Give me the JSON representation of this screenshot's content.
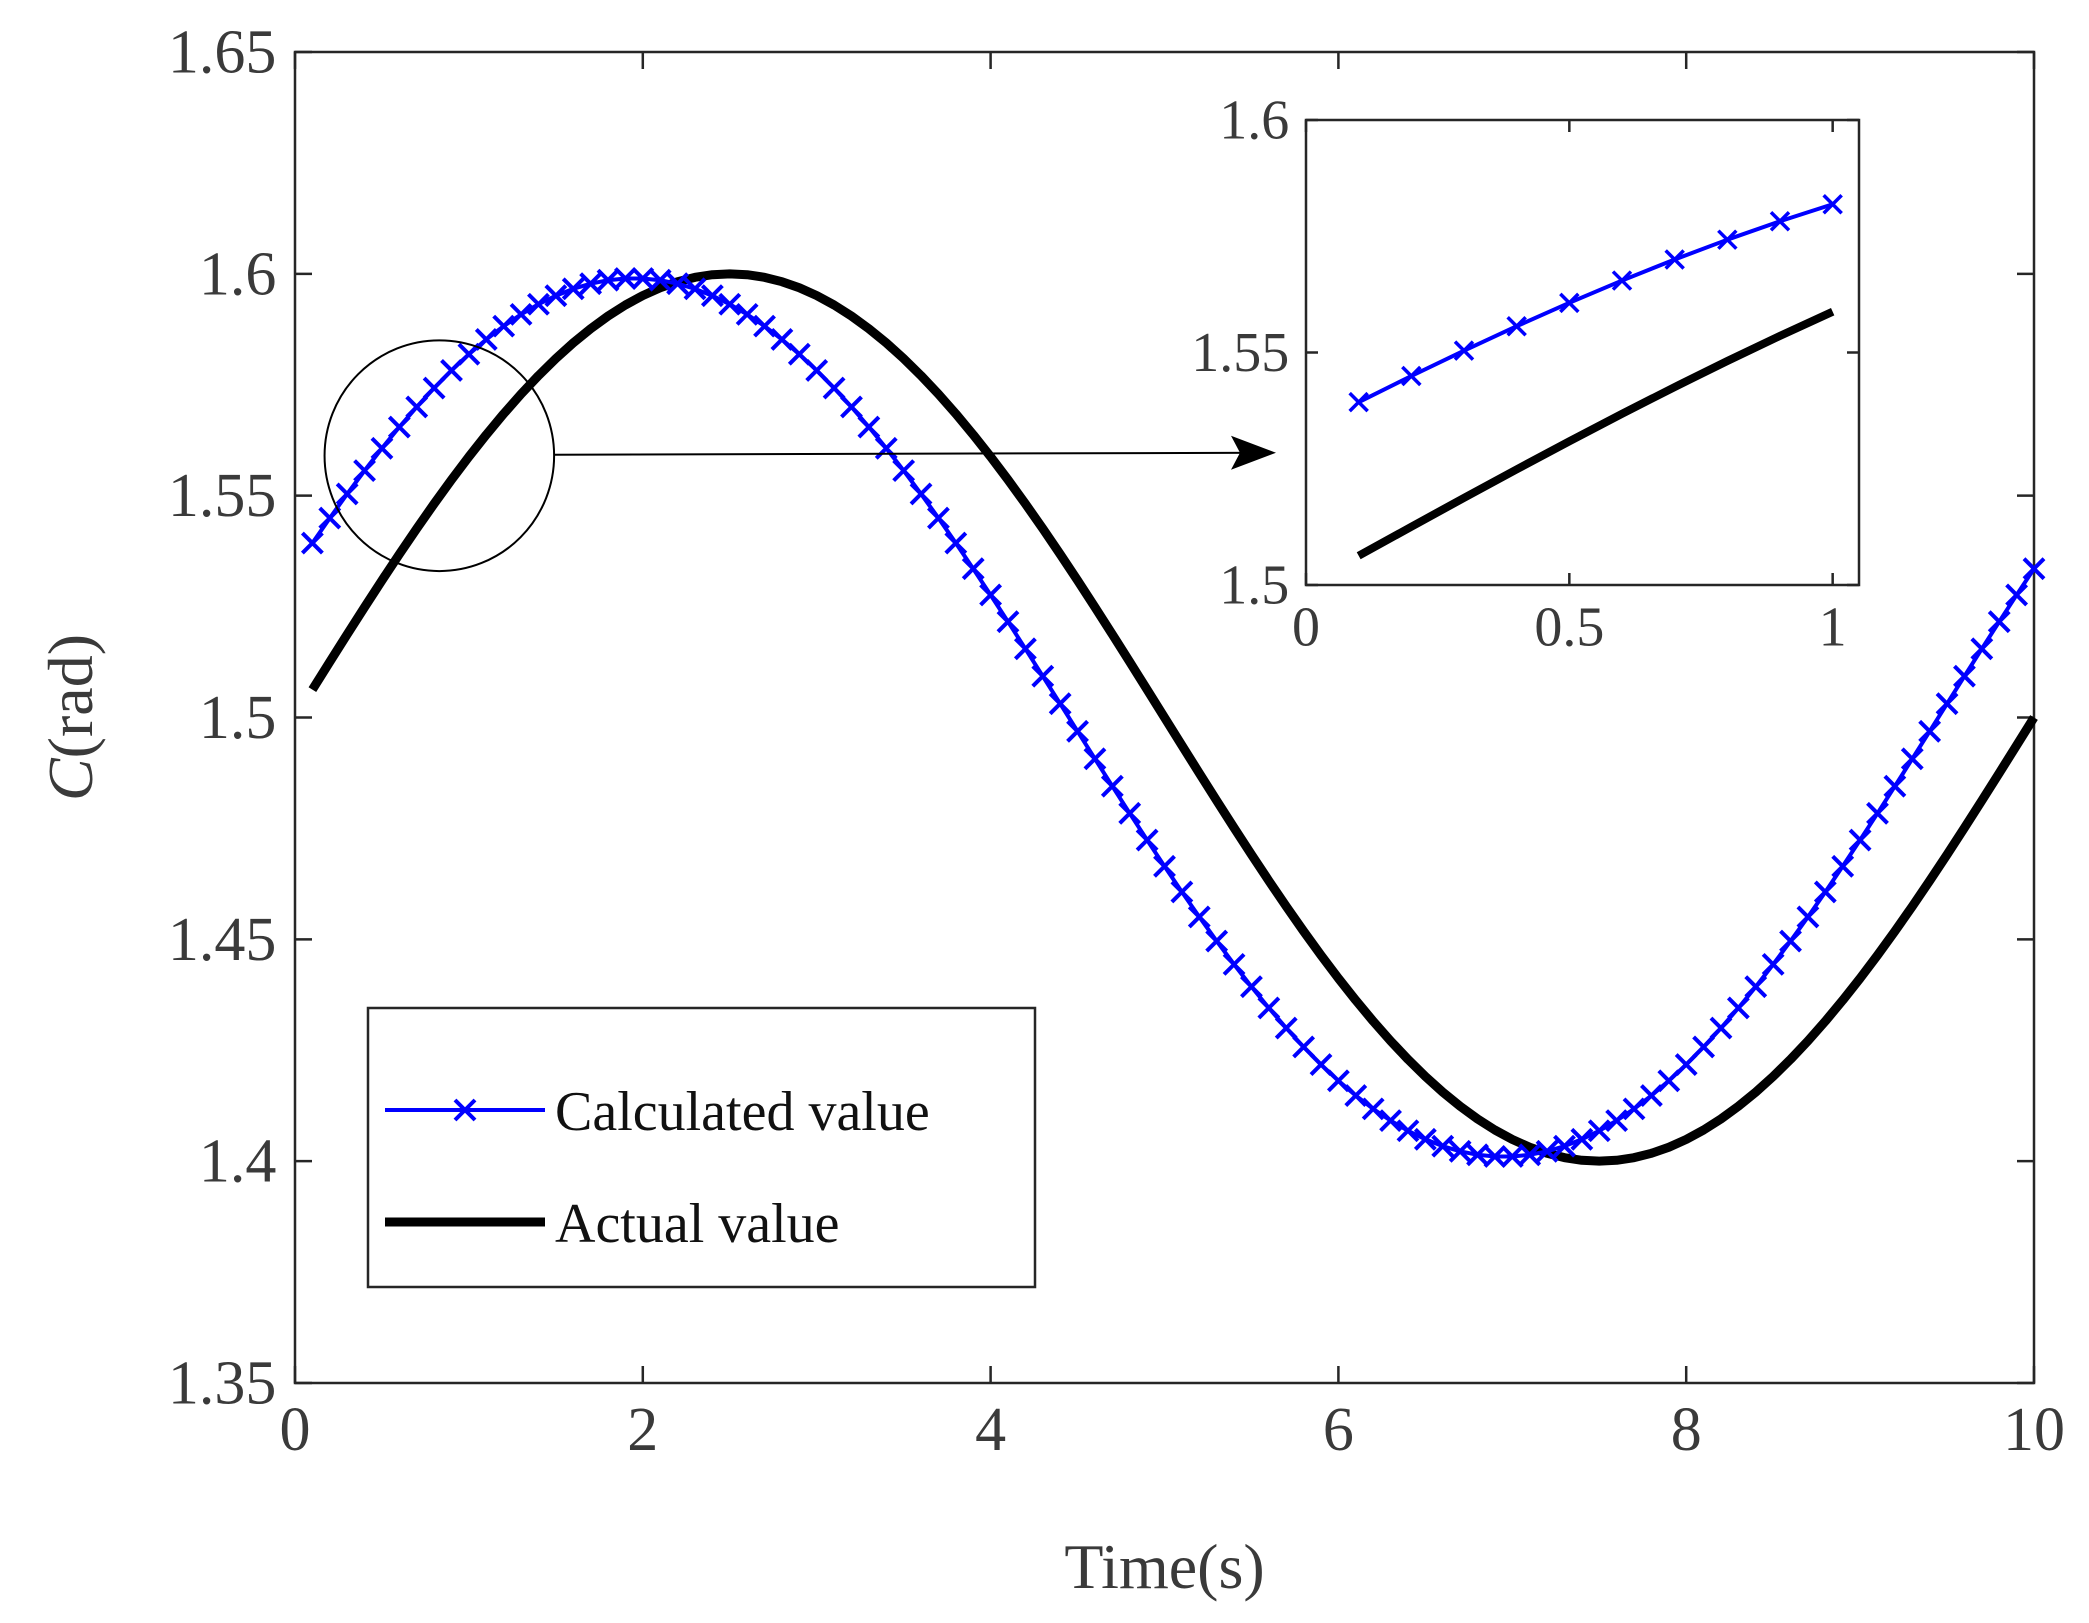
{
  "chart_data": {
    "type": "line",
    "title": "",
    "xlabel": "Time(s)",
    "ylabel": {
      "var": "C",
      "unit": "(rad)"
    },
    "xlim": [
      0,
      10
    ],
    "ylim": [
      1.35,
      1.65
    ],
    "xticks": [
      0,
      2,
      4,
      6,
      8,
      10
    ],
    "xtick_labels": [
      "0",
      "2",
      "4",
      "6",
      "8",
      "10"
    ],
    "yticks": [
      1.35,
      1.4,
      1.45,
      1.5,
      1.55,
      1.6,
      1.65
    ],
    "ytick_labels": [
      "1.35",
      "1.4",
      "1.45",
      "1.5",
      "1.55",
      "1.6",
      "1.65"
    ],
    "grid": false,
    "legend_position": "bottom-left",
    "series": [
      {
        "name": "Calculated value",
        "color": "#0000ff",
        "marker": "x",
        "model": {
          "mean": 1.5,
          "amplitude": 0.099,
          "period": 10,
          "phase_s": 0.55
        },
        "x_range": [
          0.1,
          10
        ],
        "x_step": 0.1
      },
      {
        "name": "Actual value",
        "color": "#000000",
        "marker": "none",
        "model": {
          "mean": 1.5,
          "amplitude": 0.1,
          "period": 10,
          "phase_s": 0
        },
        "x_range": [
          0.1,
          10
        ],
        "x_step": 0.1
      }
    ],
    "highlight": {
      "center": [
        0.83,
        1.559
      ],
      "radius_x": 0.66,
      "radius_y": 0.026,
      "points_to": "inset"
    },
    "inset": {
      "xlim": [
        0,
        1.05
      ],
      "ylim": [
        1.5,
        1.6
      ],
      "xticks": [
        0,
        0.5,
        1
      ],
      "xtick_labels": [
        "0",
        "0.5",
        "1"
      ],
      "yticks": [
        1.5,
        1.55,
        1.6
      ],
      "ytick_labels": [
        "1.5",
        "1.55",
        "1.6"
      ],
      "x_range": [
        0.1,
        1.05
      ]
    }
  }
}
